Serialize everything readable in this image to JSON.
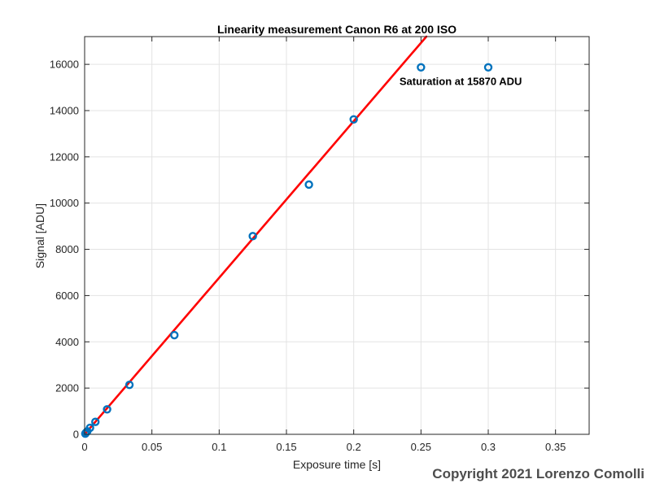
{
  "chart_data": {
    "type": "scatter",
    "title": "Linearity measurement Canon R6 at 200 ISO",
    "xlabel": "Exposure time [s]",
    "ylabel": "Signal [ADU]",
    "xlim": [
      0,
      0.375
    ],
    "ylim": [
      0,
      17200
    ],
    "xticks": [
      0,
      0.05,
      0.1,
      0.15,
      0.2,
      0.25,
      0.3,
      0.35
    ],
    "xtick_labels": [
      "0",
      "0.05",
      "0.1",
      "0.15",
      "0.2",
      "0.25",
      "0.3",
      "0.35"
    ],
    "yticks": [
      0,
      2000,
      4000,
      6000,
      8000,
      10000,
      12000,
      14000,
      16000
    ],
    "ytick_labels": [
      "0",
      "2000",
      "4000",
      "6000",
      "8000",
      "10000",
      "12000",
      "14000",
      "16000"
    ],
    "grid": true,
    "series": [
      {
        "kind": "scatter",
        "color": "#0072BD",
        "x": [
          0.0005,
          0.001,
          0.002,
          0.004,
          0.008,
          0.0167,
          0.0333,
          0.0667,
          0.125,
          0.1667,
          0.2,
          0.25,
          0.3
        ],
        "y": [
          30,
          70,
          130,
          280,
          540,
          1080,
          2140,
          4290,
          8570,
          10800,
          13620,
          15870,
          15870
        ]
      },
      {
        "kind": "line",
        "color": "#FF0000",
        "x": [
          0,
          0.254
        ],
        "y": [
          0,
          17200
        ]
      }
    ],
    "annotations": [
      {
        "text": "Saturation at 15870 ADU",
        "x": 0.234,
        "y": 15100
      }
    ]
  },
  "watermark": "Copyright 2021 Lorenzo Comolli"
}
